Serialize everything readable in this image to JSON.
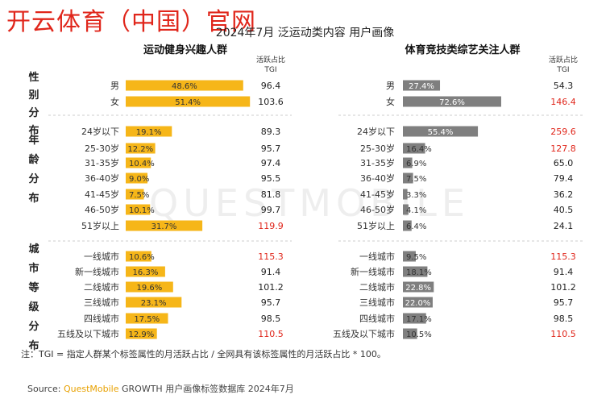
{
  "watermark": "开云体育（中国）官网",
  "title": "2024年7月 泛运动类内容 用户画像",
  "note": "注：TGI = 指定人群某个标签属性的月活跃占比 / 全网具有该标签属性的月活跃占比 * 100。",
  "source": {
    "prefix": "Source: ",
    "brand": "QuestMobile",
    "rest": " GROWTH 用户画像标签数据库 2024年7月"
  },
  "background_logo": "QUESTMOBILE",
  "colors": {
    "left_bar": "#f6b619",
    "right_bar": "#7f7f7f",
    "tgi_high": "#e0261b",
    "tgi_normal": "#222222"
  },
  "group_labels": [
    "性别分布",
    "年龄分布",
    "城市等级分布"
  ],
  "chart_data": [
    {
      "type": "bar",
      "orientation": "horizontal",
      "title": "运动健身兴趣人群",
      "tgi_header": [
        "活跃占比",
        "TGI"
      ],
      "categories": [
        "男",
        "女",
        "24岁以下",
        "25-30岁",
        "31-35岁",
        "36-40岁",
        "41-45岁",
        "46-50岁",
        "51岁以上",
        "一线城市",
        "新一线城市",
        "二线城市",
        "三线城市",
        "四线城市",
        "五线及以下城市"
      ],
      "values": [
        48.6,
        51.4,
        19.1,
        12.2,
        10.4,
        9.0,
        7.5,
        10.1,
        31.7,
        10.6,
        16.3,
        19.6,
        23.1,
        17.5,
        12.9
      ],
      "value_labels": [
        "48.6%",
        "51.4%",
        "19.1%",
        "12.2%",
        "10.4%",
        "9.0%",
        "7.5%",
        "10.1%",
        "31.7%",
        "10.6%",
        "16.3%",
        "19.6%",
        "23.1%",
        "17.5%",
        "12.9%"
      ],
      "tgi": [
        "96.4",
        "103.6",
        "89.3",
        "95.7",
        "97.4",
        "95.5",
        "81.8",
        "99.7",
        "119.9",
        "115.3",
        "91.4",
        "101.2",
        "95.7",
        "98.5",
        "110.5"
      ],
      "xlim": [
        0,
        60
      ]
    },
    {
      "type": "bar",
      "orientation": "horizontal",
      "title": "体育竞技类综艺关注人群",
      "tgi_header": [
        "活跃占比",
        "TGI"
      ],
      "categories": [
        "男",
        "女",
        "24岁以下",
        "25-30岁",
        "31-35岁",
        "36-40岁",
        "41-45岁",
        "46-50岁",
        "51岁以上",
        "一线城市",
        "新一线城市",
        "二线城市",
        "三线城市",
        "四线城市",
        "五线及以下城市"
      ],
      "values": [
        27.4,
        72.6,
        55.4,
        16.4,
        6.9,
        7.5,
        3.3,
        4.1,
        6.4,
        9.5,
        18.1,
        22.8,
        22.0,
        17.1,
        10.5
      ],
      "value_labels": [
        "27.4%",
        "72.6%",
        "55.4%",
        "16.4%",
        "6.9%",
        "7.5%",
        "3.3%",
        "4.1%",
        "6.4%",
        "9.5%",
        "18.1%",
        "22.8%",
        "22.0%",
        "17.1%",
        "10.5%"
      ],
      "tgi": [
        "54.3",
        "146.4",
        "259.6",
        "127.8",
        "65.0",
        "79.4",
        "36.2",
        "40.5",
        "24.1",
        "115.3",
        "91.4",
        "101.2",
        "95.7",
        "98.5",
        "110.5"
      ],
      "xlim": [
        0,
        90
      ]
    }
  ]
}
